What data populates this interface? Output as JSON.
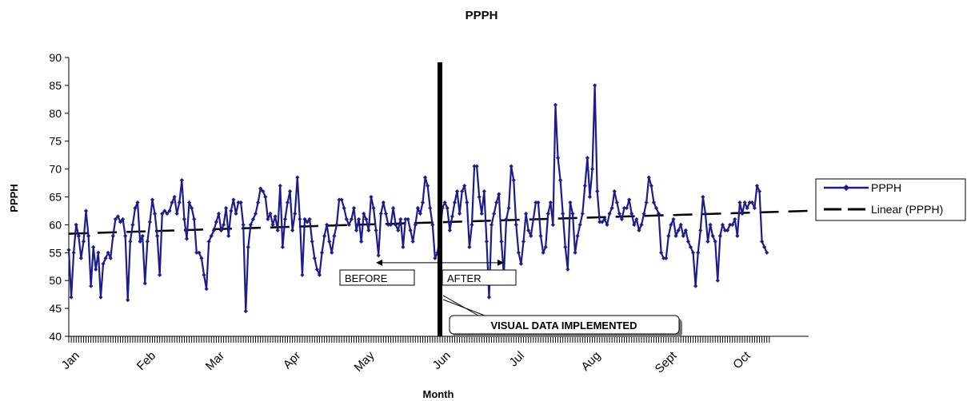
{
  "chart_data": {
    "type": "line",
    "title": "PPPH",
    "xlabel": "Month",
    "ylabel": "PPPH",
    "ylim": [
      40,
      90
    ],
    "yticks": [
      40,
      45,
      50,
      55,
      60,
      65,
      70,
      75,
      80,
      85,
      90
    ],
    "xlim": [
      0,
      301
    ],
    "months": [
      {
        "label": "Jan",
        "x": 0
      },
      {
        "label": "Feb",
        "x": 31
      },
      {
        "label": "Mar",
        "x": 59
      },
      {
        "label": "Apr",
        "x": 90
      },
      {
        "label": "May",
        "x": 120
      },
      {
        "label": "Jun",
        "x": 151
      },
      {
        "label": "Jul",
        "x": 181
      },
      {
        "label": "Aug",
        "x": 212
      },
      {
        "label": "Sept",
        "x": 243
      },
      {
        "label": "Oct",
        "x": 273
      }
    ],
    "legend_position": "right",
    "series": [
      {
        "name": "PPPH",
        "color": "#1c1c8c",
        "marker": "diamond",
        "values": [
          55.5,
          47,
          55,
          60,
          58,
          54,
          57,
          62.5,
          58,
          49,
          56,
          52,
          55,
          47,
          53,
          54,
          55,
          54,
          58,
          61,
          61.5,
          60.5,
          61,
          58,
          46.5,
          57,
          60,
          63,
          64,
          57,
          58,
          49.5,
          57,
          60.5,
          64.5,
          62,
          58,
          51,
          62,
          62.5,
          62,
          62.5,
          64,
          65,
          62,
          64,
          68,
          61,
          57.5,
          64,
          63,
          61,
          55,
          55,
          54,
          51,
          48.5,
          57,
          58,
          59,
          60.5,
          62,
          59,
          60,
          63,
          58,
          62.5,
          64.5,
          62,
          64,
          64,
          60,
          44.5,
          56,
          60,
          61,
          62,
          64,
          66.5,
          66,
          65,
          61,
          62,
          60,
          61.5,
          59,
          67,
          56,
          61,
          64,
          66,
          59,
          62,
          68.5,
          61,
          51,
          61,
          60.5,
          61,
          57,
          54,
          52,
          51,
          55,
          58,
          60,
          57,
          55,
          58,
          60,
          64.5,
          64.5,
          63,
          61,
          60,
          61,
          63,
          59,
          61,
          57,
          62,
          61,
          59,
          65,
          63,
          59,
          54.5,
          62,
          64,
          62,
          60,
          60,
          63,
          60,
          59,
          61,
          56,
          61,
          61,
          59,
          57,
          60,
          63,
          62,
          64,
          68.5,
          67,
          63,
          60,
          54,
          55,
          58,
          63,
          64,
          63,
          59,
          61.5,
          64,
          66,
          62,
          66,
          67,
          64,
          56,
          60,
          70.5,
          70.5,
          65,
          62,
          66,
          57,
          47,
          60,
          62,
          64,
          65.5,
          57,
          51,
          61,
          63,
          70.5,
          68,
          60,
          55,
          53,
          57,
          62,
          59,
          58,
          61,
          64,
          64,
          58,
          55,
          56,
          62,
          64,
          60,
          81.5,
          72,
          68,
          62,
          56,
          52,
          64,
          62,
          55,
          58,
          60,
          62,
          67,
          72,
          65,
          70,
          85,
          66,
          60.5,
          60.5,
          61,
          60,
          62,
          63,
          66,
          64,
          62,
          61,
          63,
          63,
          64.5,
          62,
          60,
          61,
          59,
          60,
          62,
          64,
          68.5,
          67,
          64,
          63,
          62,
          55,
          54,
          54,
          58,
          60,
          61,
          58,
          59,
          60,
          58,
          59,
          57,
          56,
          55,
          49,
          55,
          59,
          65,
          62,
          57,
          60,
          58,
          57,
          50,
          58,
          60,
          59,
          59,
          60,
          60,
          61,
          58,
          64,
          62,
          64,
          63,
          64,
          64,
          63,
          67,
          66,
          57,
          56,
          55
        ]
      },
      {
        "name": "Linear (PPPH)",
        "color": "#000000",
        "dash": true,
        "start": 58.4,
        "end": 62.5
      }
    ],
    "annotations": {
      "divider_x": 151,
      "before_label": "BEFORE",
      "after_label": "AFTER",
      "implemented_label": "VISUAL DATA IMPLEMENTED",
      "arrow_from_x": 125,
      "arrow_to_x": 177,
      "arrow_y": 53.2
    }
  }
}
